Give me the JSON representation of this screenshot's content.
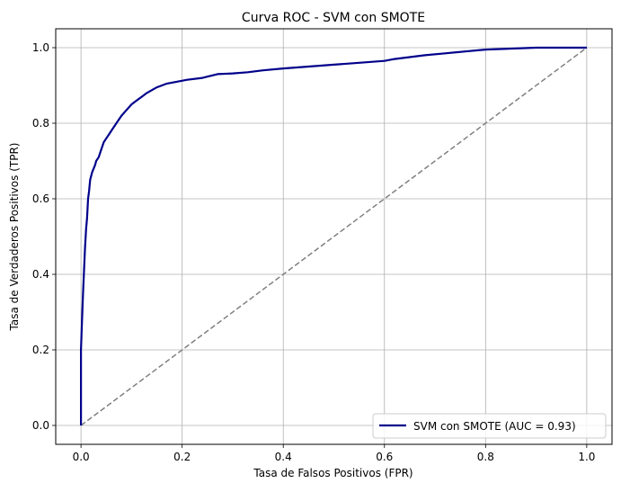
{
  "chart_data": {
    "type": "line",
    "title": "Curva ROC - SVM con SMOTE",
    "xlabel": "Tasa de Falsos Positivos (FPR)",
    "ylabel": "Tasa de Verdaderos Positivos (TPR)",
    "xlim": [
      -0.05,
      1.05
    ],
    "ylim": [
      -0.05,
      1.05
    ],
    "xticks": [
      0.0,
      0.2,
      0.4,
      0.6,
      0.8,
      1.0
    ],
    "xtick_labels": [
      "0.0",
      "0.2",
      "0.4",
      "0.6",
      "0.8",
      "1.0"
    ],
    "yticks": [
      0.0,
      0.2,
      0.4,
      0.6,
      0.8,
      1.0
    ],
    "ytick_labels": [
      "0.0",
      "0.2",
      "0.4",
      "0.6",
      "0.8",
      "1.0"
    ],
    "grid": true,
    "legend_position": "lower-right",
    "series": [
      {
        "name": "SVM con SMOTE (AUC = 0.93)",
        "color": "#00008b",
        "style": "solid",
        "x": [
          0.0,
          0.0,
          0.0,
          0.002,
          0.004,
          0.006,
          0.008,
          0.01,
          0.012,
          0.014,
          0.016,
          0.018,
          0.02,
          0.022,
          0.025,
          0.028,
          0.03,
          0.035,
          0.04,
          0.045,
          0.05,
          0.055,
          0.06,
          0.07,
          0.08,
          0.09,
          0.1,
          0.11,
          0.12,
          0.13,
          0.15,
          0.17,
          0.19,
          0.21,
          0.24,
          0.27,
          0.3,
          0.33,
          0.36,
          0.4,
          0.45,
          0.5,
          0.55,
          0.6,
          0.62,
          0.68,
          0.72,
          0.76,
          0.8,
          0.9,
          1.0
        ],
        "y": [
          0.0,
          0.1,
          0.2,
          0.28,
          0.35,
          0.41,
          0.47,
          0.52,
          0.55,
          0.6,
          0.62,
          0.65,
          0.66,
          0.67,
          0.68,
          0.69,
          0.7,
          0.71,
          0.73,
          0.75,
          0.76,
          0.77,
          0.78,
          0.8,
          0.82,
          0.835,
          0.85,
          0.86,
          0.87,
          0.88,
          0.895,
          0.905,
          0.91,
          0.915,
          0.92,
          0.93,
          0.932,
          0.935,
          0.94,
          0.945,
          0.95,
          0.955,
          0.96,
          0.965,
          0.97,
          0.98,
          0.985,
          0.99,
          0.995,
          1.0,
          1.0
        ]
      },
      {
        "name": "",
        "color": "#808080",
        "style": "dashed",
        "x": [
          0,
          1
        ],
        "y": [
          0,
          1
        ]
      }
    ]
  }
}
